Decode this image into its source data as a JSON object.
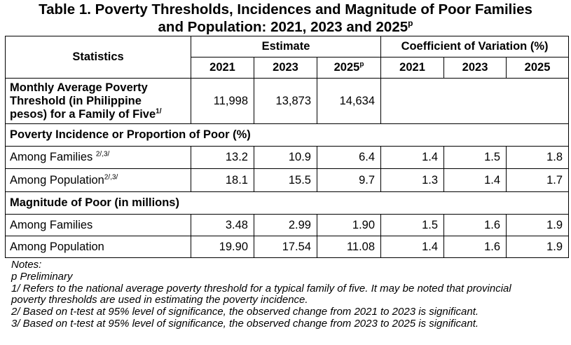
{
  "title": {
    "line1": "Table 1. Poverty Thresholds, Incidences and Magnitude of Poor Families",
    "line2": "and Population: 2021, 2023 and 2025",
    "line2_sup": "p"
  },
  "headers": {
    "statistics": "Statistics",
    "estimate": "Estimate",
    "cv": "Coefficient of Variation (%)",
    "est_years": [
      "2021",
      "2023",
      "2025"
    ],
    "est_year_sup": "p",
    "cv_years": [
      "2021",
      "2023",
      "2025"
    ]
  },
  "threshold": {
    "label_lines": [
      "Monthly Average Poverty",
      "Threshold (in Philippine",
      "pesos) for a Family of Five"
    ],
    "label_sup": "1/",
    "values": [
      "11,998",
      "13,873",
      "14,634"
    ]
  },
  "incidence": {
    "section": "Poverty Incidence or Proportion of Poor (%)",
    "rows": [
      {
        "label": "Among Families ",
        "sup": "2/,3/",
        "estimates": [
          "13.2",
          "10.9",
          "6.4"
        ],
        "cv": [
          "1.4",
          "1.5",
          "1.8"
        ]
      },
      {
        "label": "Among Population",
        "sup": "2/,3/",
        "estimates": [
          "18.1",
          "15.5",
          "9.7"
        ],
        "cv": [
          "1.3",
          "1.4",
          "1.7"
        ]
      }
    ]
  },
  "magnitude": {
    "section": "Magnitude of Poor (in millions)",
    "rows": [
      {
        "label": "Among Families",
        "sup": "",
        "estimates": [
          "3.48",
          "2.99",
          "1.90"
        ],
        "cv": [
          "1.5",
          "1.6",
          "1.9"
        ]
      },
      {
        "label": "Among Population",
        "sup": "",
        "estimates": [
          "19.90",
          "17.54",
          "11.08"
        ],
        "cv": [
          "1.4",
          "1.6",
          "1.9"
        ]
      }
    ]
  },
  "notes": [
    "Notes:",
    "p Preliminary",
    "1/ Refers to the national average poverty threshold for a typical family of five.  It may be noted that provincial",
    "poverty thresholds are used in estimating the poverty incidence.",
    "2/ Based on t-test at 95% level of significance, the observed change from 2021 to 2023 is significant.",
    "3/ Based on t-test at 95% level of significance, the observed change from 2023 to 2025 is significant."
  ]
}
